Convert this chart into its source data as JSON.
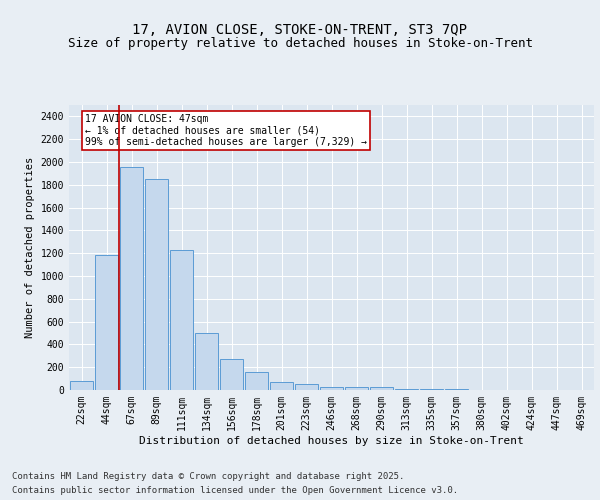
{
  "title1": "17, AVION CLOSE, STOKE-ON-TRENT, ST3 7QP",
  "title2": "Size of property relative to detached houses in Stoke-on-Trent",
  "xlabel": "Distribution of detached houses by size in Stoke-on-Trent",
  "ylabel": "Number of detached properties",
  "categories": [
    "22sqm",
    "44sqm",
    "67sqm",
    "89sqm",
    "111sqm",
    "134sqm",
    "156sqm",
    "178sqm",
    "201sqm",
    "223sqm",
    "246sqm",
    "268sqm",
    "290sqm",
    "313sqm",
    "335sqm",
    "357sqm",
    "380sqm",
    "402sqm",
    "424sqm",
    "447sqm",
    "469sqm"
  ],
  "values": [
    80,
    1180,
    1960,
    1850,
    1230,
    500,
    270,
    155,
    70,
    55,
    30,
    30,
    25,
    10,
    8,
    5,
    3,
    2,
    1,
    1,
    1
  ],
  "bar_color": "#c5d8ed",
  "bar_edge_color": "#5b9bd5",
  "vline_color": "#c00000",
  "annotation_text": "17 AVION CLOSE: 47sqm\n← 1% of detached houses are smaller (54)\n99% of semi-detached houses are larger (7,329) →",
  "annotation_box_color": "#ffffff",
  "annotation_box_edge": "#c00000",
  "ylim": [
    0,
    2500
  ],
  "yticks": [
    0,
    200,
    400,
    600,
    800,
    1000,
    1200,
    1400,
    1600,
    1800,
    2000,
    2200,
    2400
  ],
  "bg_color": "#e8eef4",
  "plot_bg": "#dce6f0",
  "footer1": "Contains HM Land Registry data © Crown copyright and database right 2025.",
  "footer2": "Contains public sector information licensed under the Open Government Licence v3.0.",
  "title1_fontsize": 10,
  "title2_fontsize": 9,
  "xlabel_fontsize": 8,
  "ylabel_fontsize": 7.5,
  "tick_fontsize": 7,
  "footer_fontsize": 6.5
}
